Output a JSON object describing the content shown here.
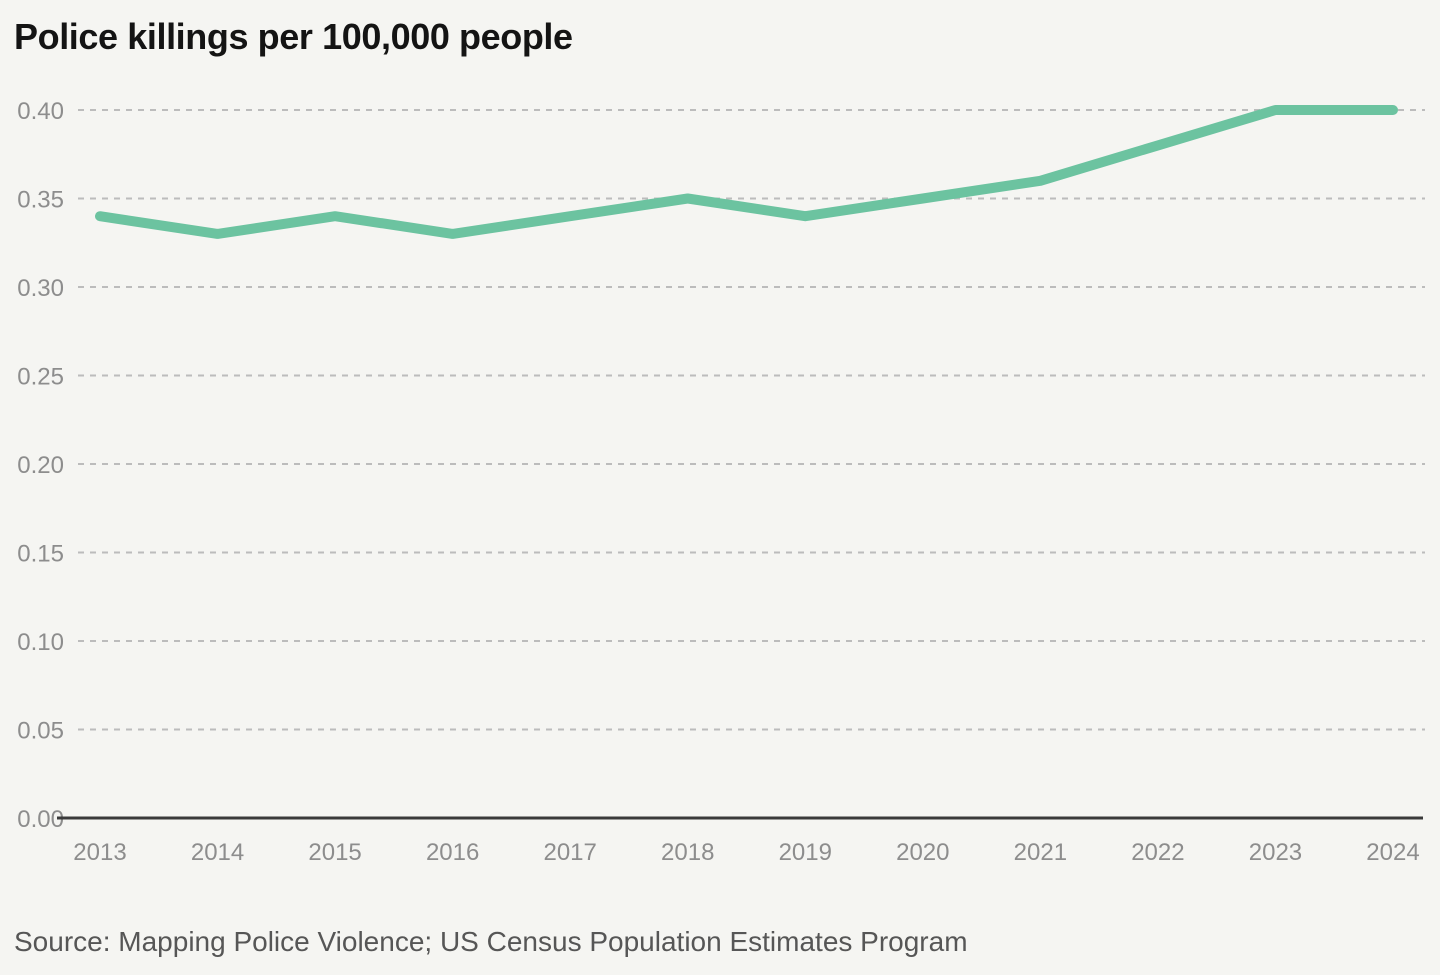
{
  "header": {
    "title": "Police killings per 100,000 people"
  },
  "footer": {
    "source": "Source: Mapping Police Violence; US Census Population Estimates Program"
  },
  "chart_data": {
    "type": "line",
    "title": "Police killings per 100,000 people",
    "categories": [
      "2013",
      "2014",
      "2015",
      "2016",
      "2017",
      "2018",
      "2019",
      "2020",
      "2021",
      "2022",
      "2023",
      "2024"
    ],
    "series": [
      {
        "name": "Police killings per 100,000 people",
        "values": [
          0.34,
          0.33,
          0.34,
          0.33,
          0.34,
          0.35,
          0.34,
          0.35,
          0.36,
          0.38,
          0.4,
          0.4
        ]
      }
    ],
    "xlabel": "",
    "ylabel": "",
    "ylim": [
      0,
      0.4
    ],
    "yticks": [
      0,
      0.05,
      0.1,
      0.15,
      0.2,
      0.25,
      0.3,
      0.35,
      0.4
    ],
    "ytick_labels": [
      "0.00",
      "0.05",
      "0.10",
      "0.15",
      "0.20",
      "0.25",
      "0.30",
      "0.35",
      "0.40"
    ],
    "grid": "horizontal-dashed",
    "legend": "none",
    "colors": {
      "line": "#6cc3a0",
      "grid": "#bcbcbc",
      "baseline": "#3a3a3a",
      "tick_label": "#8d8d8d",
      "title": "#141414",
      "source": "#565656",
      "background": "#f5f5f2"
    }
  }
}
